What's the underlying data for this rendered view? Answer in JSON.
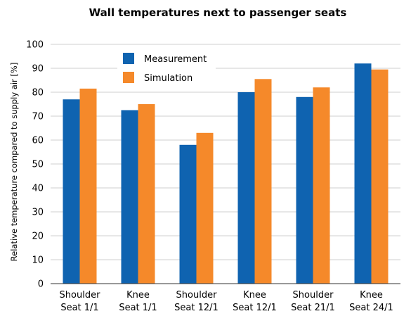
{
  "chart_data": {
    "type": "bar",
    "title": "Wall temperatures next to passenger seats",
    "xlabel": "",
    "ylabel": "Relative temperature compared to supply air [%]",
    "ylim": [
      0,
      100
    ],
    "yticks": [
      0,
      10,
      20,
      30,
      40,
      50,
      60,
      70,
      80,
      90,
      100
    ],
    "categories": [
      [
        "Shoulder",
        "Seat 1/1"
      ],
      [
        "Knee",
        "Seat 1/1"
      ],
      [
        "Shoulder",
        "Seat 12/1"
      ],
      [
        "Knee",
        "Seat 12/1"
      ],
      [
        "Shoulder",
        "Seat 21/1"
      ],
      [
        "Knee",
        "Seat 24/1"
      ]
    ],
    "series": [
      {
        "name": "Measurement",
        "color": "#0f63b0",
        "values": [
          77,
          72.5,
          58,
          80,
          78,
          92
        ]
      },
      {
        "name": "Simulation",
        "color": "#f5892a",
        "values": [
          81.5,
          75,
          63,
          85.5,
          82,
          89.5
        ]
      }
    ],
    "grid": true,
    "legend": "top-left"
  }
}
